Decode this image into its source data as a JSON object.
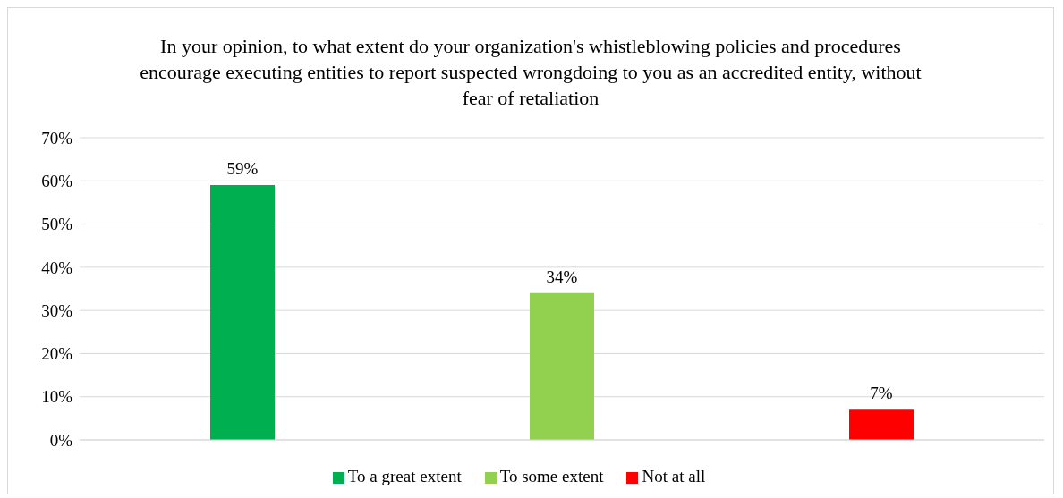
{
  "chart_data": {
    "type": "bar",
    "title": "In your opinion, to what extent do your organization's whistleblowing policies and procedures encourage executing entities to report suspected wrongdoing to you as an accredited entity, without fear of retaliation",
    "categories": [
      null
    ],
    "series": [
      {
        "name": "To a great extent",
        "color": "#00b050",
        "values": [
          59
        ],
        "value_labels": [
          "59%"
        ]
      },
      {
        "name": "To some extent",
        "color": "#92d050",
        "values": [
          34
        ],
        "value_labels": [
          "34%"
        ]
      },
      {
        "name": "Not at all",
        "color": "#ff0000",
        "values": [
          7
        ],
        "value_labels": [
          "7%"
        ]
      }
    ],
    "ylim": [
      0,
      70
    ],
    "yticks": [
      {
        "value": 0,
        "label": "0%"
      },
      {
        "value": 10,
        "label": "10%"
      },
      {
        "value": 20,
        "label": "20%"
      },
      {
        "value": 30,
        "label": "30%"
      },
      {
        "value": 40,
        "label": "40%"
      },
      {
        "value": 50,
        "label": "50%"
      },
      {
        "value": 60,
        "label": "60%"
      },
      {
        "value": 70,
        "label": "70%"
      }
    ],
    "grid": "y",
    "legend": "bottom"
  }
}
